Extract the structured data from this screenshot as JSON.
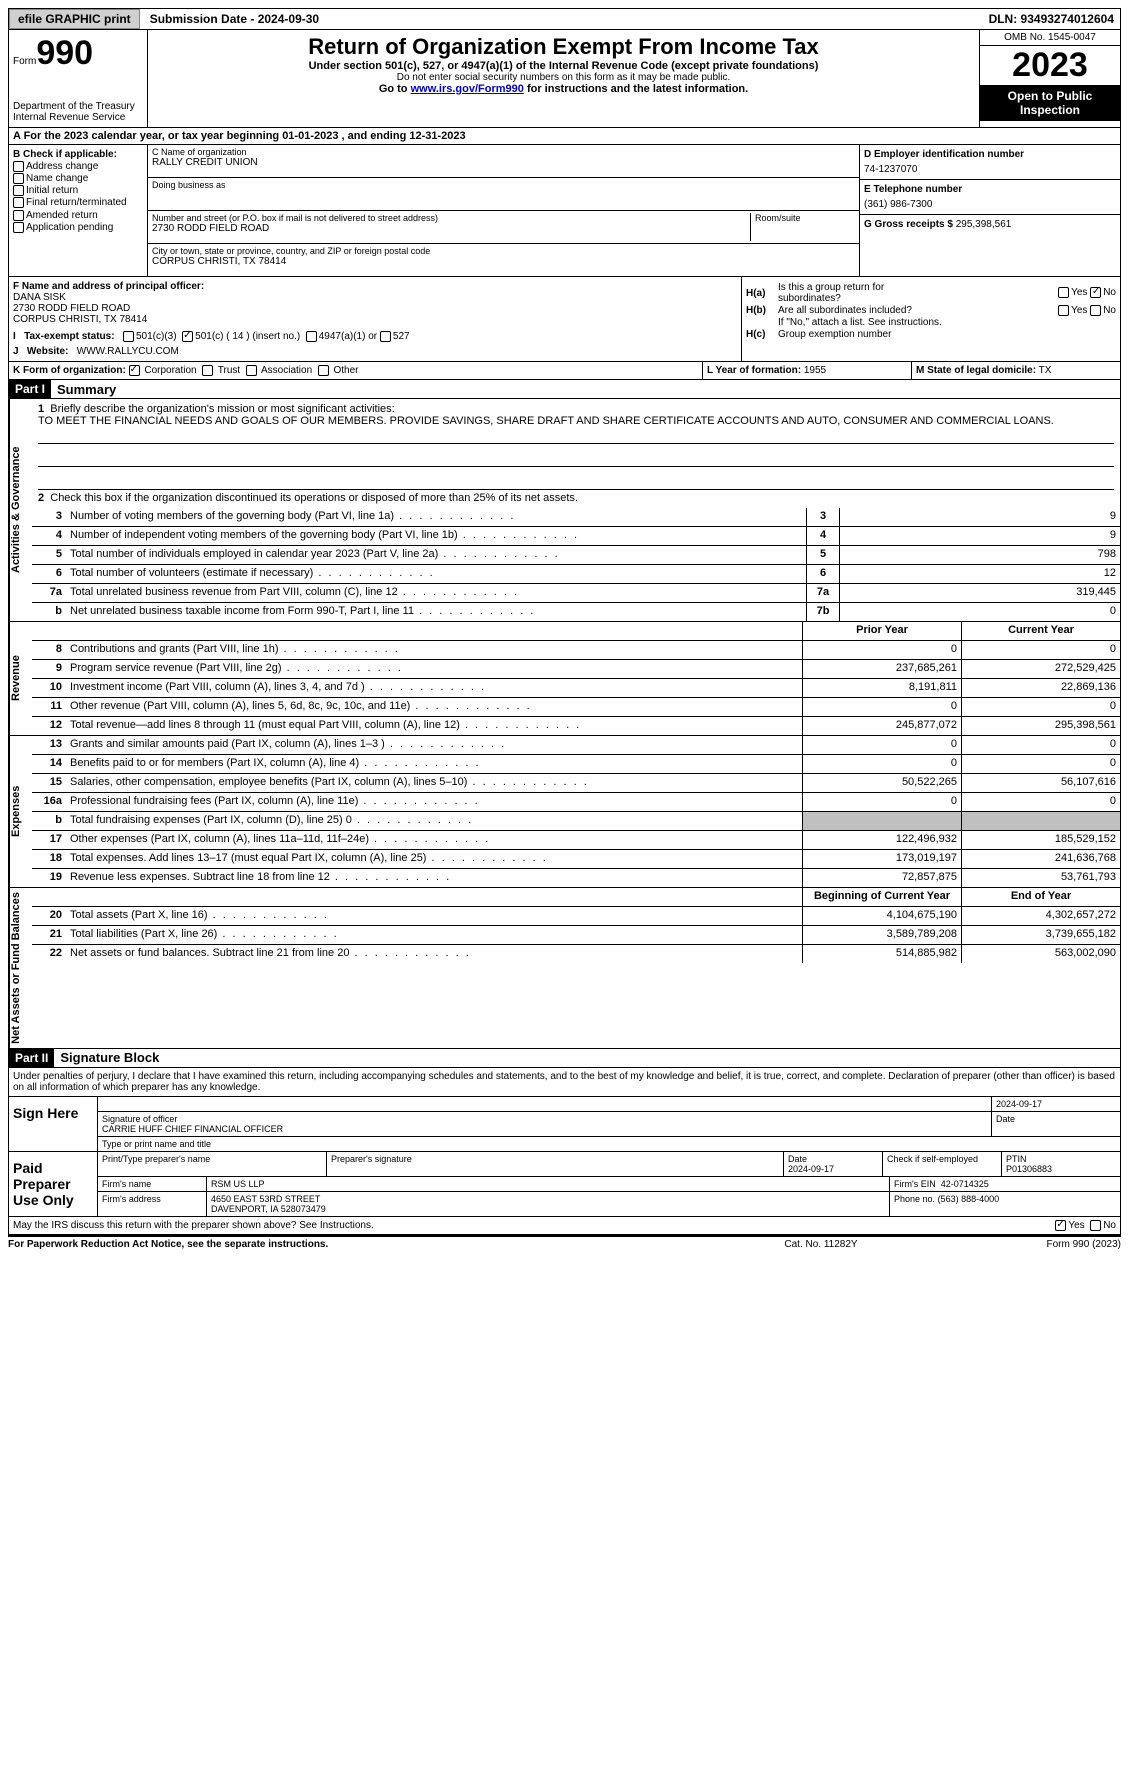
{
  "topbar": {
    "efile": "efile GRAPHIC print",
    "submission": "Submission Date - 2024-09-30",
    "dln": "DLN: 93493274012604"
  },
  "header": {
    "form_label": "Form",
    "form_num": "990",
    "dept": "Department of the Treasury\nInternal Revenue Service",
    "title": "Return of Organization Exempt From Income Tax",
    "sub1": "Under section 501(c), 527, or 4947(a)(1) of the Internal Revenue Code (except private foundations)",
    "sub2": "Do not enter social security numbers on this form as it may be made public.",
    "sub3_pre": "Go to ",
    "sub3_link": "www.irs.gov/Form990",
    "sub3_post": " for instructions and the latest information.",
    "omb": "OMB No. 1545-0047",
    "year": "2023",
    "open": "Open to Public Inspection"
  },
  "rowA": "A   For the 2023 calendar year, or tax year beginning 01-01-2023   , and ending 12-31-2023",
  "boxB": {
    "label": "B Check if applicable:",
    "items": [
      "Address change",
      "Name change",
      "Initial return",
      "Final return/terminated",
      "Amended return",
      "Application pending"
    ]
  },
  "boxC": {
    "name_lbl": "C Name of organization",
    "name": "RALLY CREDIT UNION",
    "dba_lbl": "Doing business as",
    "addr_lbl": "Number and street (or P.O. box if mail is not delivered to street address)",
    "room_lbl": "Room/suite",
    "addr": "2730 RODD FIELD ROAD",
    "city_lbl": "City or town, state or province, country, and ZIP or foreign postal code",
    "city": "CORPUS CHRISTI, TX  78414"
  },
  "boxD": {
    "ein_lbl": "D Employer identification number",
    "ein": "74-1237070",
    "tel_lbl": "E Telephone number",
    "tel": "(361) 986-7300",
    "gross_lbl": "G Gross receipts $",
    "gross": "295,398,561"
  },
  "boxF": {
    "lbl": "F  Name and address of principal officer:",
    "name": "DANA SISK",
    "addr1": "2730 RODD FIELD ROAD",
    "addr2": "CORPUS CHRISTI, TX  78414"
  },
  "boxH": {
    "ha": "Is this a group return for",
    "ha2": "subordinates?",
    "hb": "Are all subordinates included?",
    "hb2": "If \"No,\" attach a list. See instructions.",
    "hc": "Group exemption number",
    "yes": "Yes",
    "no": "No"
  },
  "rowI": {
    "lbl": "Tax-exempt status:",
    "o1": "501(c)(3)",
    "o2": "501(c) ( 14 ) (insert no.)",
    "o3": "4947(a)(1) or",
    "o4": "527"
  },
  "rowJ": {
    "lbl": "Website:",
    "val": "WWW.RALLYCU.COM"
  },
  "rowK": {
    "lbl": "K Form of organization:",
    "o1": "Corporation",
    "o2": "Trust",
    "o3": "Association",
    "o4": "Other",
    "l_lbl": "L Year of formation:",
    "l_val": "1955",
    "m_lbl": "M State of legal domicile:",
    "m_val": "TX"
  },
  "part1": {
    "hdr": "Part I",
    "title": "Summary",
    "q1_lbl": "Briefly describe the organization's mission or most significant activities:",
    "q1_val": "TO MEET THE FINANCIAL NEEDS AND GOALS OF OUR MEMBERS. PROVIDE SAVINGS, SHARE DRAFT AND SHARE CERTIFICATE ACCOUNTS AND AUTO, CONSUMER AND COMMERCIAL LOANS.",
    "q2": "Check this box      if the organization discontinued its operations or disposed of more than 25% of its net assets.",
    "side_ag": "Activities & Governance",
    "side_rev": "Revenue",
    "side_exp": "Expenses",
    "side_na": "Net Assets or Fund Balances",
    "rows_ag": [
      {
        "n": "3",
        "d": "Number of voting members of the governing body (Part VI, line 1a)",
        "k": "3",
        "v": "9"
      },
      {
        "n": "4",
        "d": "Number of independent voting members of the governing body (Part VI, line 1b)",
        "k": "4",
        "v": "9"
      },
      {
        "n": "5",
        "d": "Total number of individuals employed in calendar year 2023 (Part V, line 2a)",
        "k": "5",
        "v": "798"
      },
      {
        "n": "6",
        "d": "Total number of volunteers (estimate if necessary)",
        "k": "6",
        "v": "12"
      },
      {
        "n": "7a",
        "d": "Total unrelated business revenue from Part VIII, column (C), line 12",
        "k": "7a",
        "v": "319,445"
      },
      {
        "n": "b",
        "d": "Net unrelated business taxable income from Form 990-T, Part I, line 11",
        "k": "7b",
        "v": "0"
      }
    ],
    "col_prior": "Prior Year",
    "col_current": "Current Year",
    "rows_rev": [
      {
        "n": "8",
        "d": "Contributions and grants (Part VIII, line 1h)",
        "p": "0",
        "c": "0"
      },
      {
        "n": "9",
        "d": "Program service revenue (Part VIII, line 2g)",
        "p": "237,685,261",
        "c": "272,529,425"
      },
      {
        "n": "10",
        "d": "Investment income (Part VIII, column (A), lines 3, 4, and 7d )",
        "p": "8,191,811",
        "c": "22,869,136"
      },
      {
        "n": "11",
        "d": "Other revenue (Part VIII, column (A), lines 5, 6d, 8c, 9c, 10c, and 11e)",
        "p": "0",
        "c": "0"
      },
      {
        "n": "12",
        "d": "Total revenue—add lines 8 through 11 (must equal Part VIII, column (A), line 12)",
        "p": "245,877,072",
        "c": "295,398,561"
      }
    ],
    "rows_exp": [
      {
        "n": "13",
        "d": "Grants and similar amounts paid (Part IX, column (A), lines 1–3 )",
        "p": "0",
        "c": "0"
      },
      {
        "n": "14",
        "d": "Benefits paid to or for members (Part IX, column (A), line 4)",
        "p": "0",
        "c": "0"
      },
      {
        "n": "15",
        "d": "Salaries, other compensation, employee benefits (Part IX, column (A), lines 5–10)",
        "p": "50,522,265",
        "c": "56,107,616"
      },
      {
        "n": "16a",
        "d": "Professional fundraising fees (Part IX, column (A), line 11e)",
        "p": "0",
        "c": "0"
      },
      {
        "n": "b",
        "d": "Total fundraising expenses (Part IX, column (D), line 25) 0",
        "p": "",
        "c": "",
        "grey": true
      },
      {
        "n": "17",
        "d": "Other expenses (Part IX, column (A), lines 11a–11d, 11f–24e)",
        "p": "122,496,932",
        "c": "185,529,152"
      },
      {
        "n": "18",
        "d": "Total expenses. Add lines 13–17 (must equal Part IX, column (A), line 25)",
        "p": "173,019,197",
        "c": "241,636,768"
      },
      {
        "n": "19",
        "d": "Revenue less expenses. Subtract line 18 from line 12",
        "p": "72,857,875",
        "c": "53,761,793"
      }
    ],
    "col_begin": "Beginning of Current Year",
    "col_end": "End of Year",
    "rows_na": [
      {
        "n": "20",
        "d": "Total assets (Part X, line 16)",
        "p": "4,104,675,190",
        "c": "4,302,657,272"
      },
      {
        "n": "21",
        "d": "Total liabilities (Part X, line 26)",
        "p": "3,589,789,208",
        "c": "3,739,655,182"
      },
      {
        "n": "22",
        "d": "Net assets or fund balances. Subtract line 21 from line 20",
        "p": "514,885,982",
        "c": "563,002,090"
      }
    ]
  },
  "part2": {
    "hdr": "Part II",
    "title": "Signature Block",
    "decl": "Under penalties of perjury, I declare that I have examined this return, including accompanying schedules and statements, and to the best of my knowledge and belief, it is true, correct, and complete. Declaration of preparer (other than officer) is based on all information of which preparer has any knowledge.",
    "sign_here": "Sign Here",
    "sig_date": "2024-09-17",
    "sig_officer_lbl": "Signature of officer",
    "sig_officer": "CARRIE HUFF  CHIEF FINANCIAL OFFICER",
    "sig_type_lbl": "Type or print name and title",
    "date_lbl": "Date",
    "paid": "Paid Preparer Use Only",
    "prep_name_lbl": "Print/Type preparer's name",
    "prep_sig_lbl": "Preparer's signature",
    "prep_date": "2024-09-17",
    "prep_chk": "Check       if self-employed",
    "ptin_lbl": "PTIN",
    "ptin": "P01306883",
    "firm_name_lbl": "Firm's name",
    "firm_name": "RSM US LLP",
    "firm_ein_lbl": "Firm's EIN",
    "firm_ein": "42-0714325",
    "firm_addr_lbl": "Firm's address",
    "firm_addr1": "4650 EAST 53RD STREET",
    "firm_addr2": "DAVENPORT, IA  528073479",
    "phone_lbl": "Phone no.",
    "phone": "(563) 888-4000",
    "discuss": "May the IRS discuss this return with the preparer shown above? See Instructions.",
    "discuss_yes": "Yes",
    "discuss_no": "No"
  },
  "footer": {
    "f1": "For Paperwork Reduction Act Notice, see the separate instructions.",
    "f2": "Cat. No. 11282Y",
    "f3": "Form 990 (2023)"
  }
}
